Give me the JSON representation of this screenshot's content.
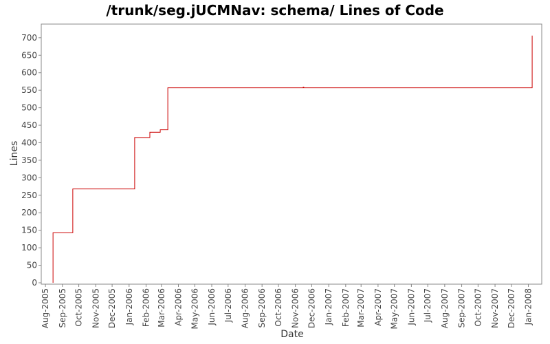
{
  "chart_data": {
    "type": "step-line",
    "title": "/trunk/seg.jUCMNav: schema/ Lines of Code",
    "x_label": "Date",
    "y_label": "Lines",
    "x": [
      2005.619,
      2005.619,
      2005.718,
      2006.028,
      2006.104,
      2006.156,
      2006.194,
      2006.872,
      2006.875,
      2008.019
    ],
    "series": [
      {
        "color": "#cc0000",
        "values": [
          0,
          143,
          268,
          415,
          430,
          437,
          557,
          559,
          557,
          706
        ]
      }
    ],
    "xlim": [
      2005.56,
      2008.067
    ],
    "xticks": [
      {
        "value": 2005.581,
        "label": "Aug-2005"
      },
      {
        "value": 2005.666,
        "label": "Sep-2005"
      },
      {
        "value": 2005.748,
        "label": "Oct-2005"
      },
      {
        "value": 2005.833,
        "label": "Nov-2005"
      },
      {
        "value": 2005.915,
        "label": "Dec-2005"
      },
      {
        "value": 2006.0,
        "label": "Jan-2006"
      },
      {
        "value": 2006.085,
        "label": "Feb-2006"
      },
      {
        "value": 2006.162,
        "label": "Mar-2006"
      },
      {
        "value": 2006.247,
        "label": "Apr-2006"
      },
      {
        "value": 2006.329,
        "label": "May-2006"
      },
      {
        "value": 2006.414,
        "label": "Jun-2006"
      },
      {
        "value": 2006.496,
        "label": "Jul-2006"
      },
      {
        "value": 2006.581,
        "label": "Aug-2006"
      },
      {
        "value": 2006.666,
        "label": "Sep-2006"
      },
      {
        "value": 2006.748,
        "label": "Oct-2006"
      },
      {
        "value": 2006.833,
        "label": "Nov-2006"
      },
      {
        "value": 2006.915,
        "label": "Dec-2006"
      },
      {
        "value": 2007.0,
        "label": "Jan-2007"
      },
      {
        "value": 2007.085,
        "label": "Feb-2007"
      },
      {
        "value": 2007.162,
        "label": "Mar-2007"
      },
      {
        "value": 2007.247,
        "label": "Apr-2007"
      },
      {
        "value": 2007.329,
        "label": "May-2007"
      },
      {
        "value": 2007.414,
        "label": "Jun-2007"
      },
      {
        "value": 2007.496,
        "label": "Jul-2007"
      },
      {
        "value": 2007.581,
        "label": "Aug-2007"
      },
      {
        "value": 2007.666,
        "label": "Sep-2007"
      },
      {
        "value": 2007.748,
        "label": "Oct-2007"
      },
      {
        "value": 2007.833,
        "label": "Nov-2007"
      },
      {
        "value": 2007.915,
        "label": "Dec-2007"
      },
      {
        "value": 2008.0,
        "label": "Jan-2008"
      }
    ],
    "ylim": [
      0,
      739
    ],
    "yticks": [
      0,
      50,
      100,
      150,
      200,
      250,
      300,
      350,
      400,
      450,
      500,
      550,
      600,
      650,
      700
    ],
    "grid": false
  }
}
